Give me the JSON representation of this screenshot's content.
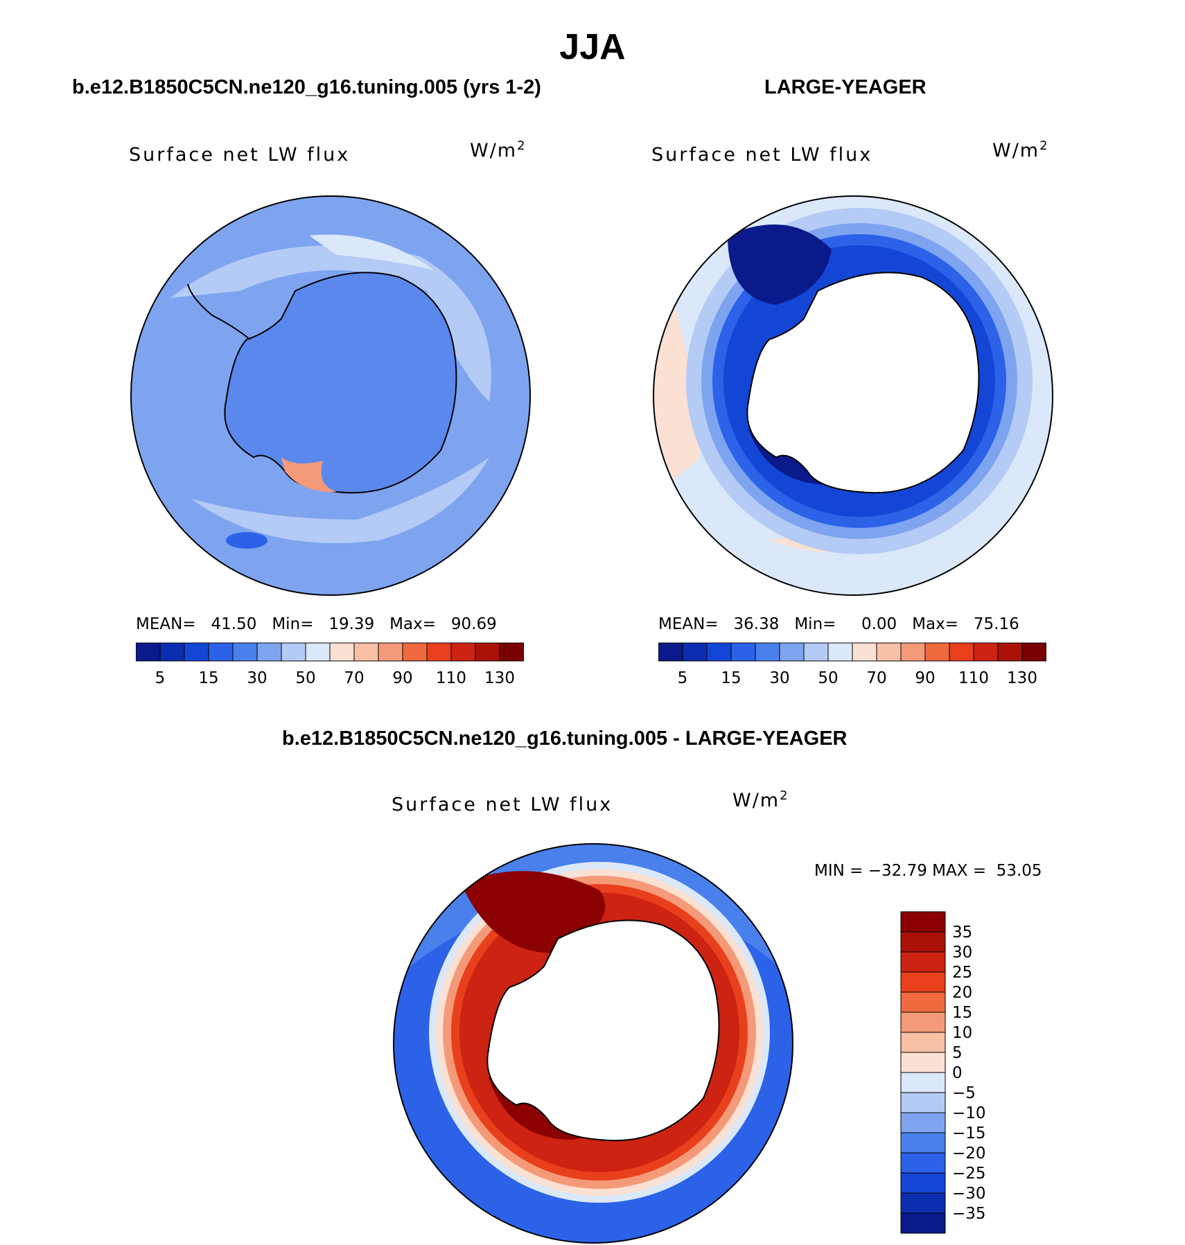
{
  "title": "JJA",
  "colors": {
    "sequential": [
      "#0a1a8a",
      "#0b2db0",
      "#1446d6",
      "#2b62e8",
      "#4a80ec",
      "#7ea4f0",
      "#b4cbf5",
      "#dbe8fa",
      "#fbe1d3",
      "#f8c0a5",
      "#f59a78",
      "#f06a40",
      "#e8401c",
      "#cc2312",
      "#aa1208",
      "#7a0000"
    ],
    "diverging": [
      "#0a1a8a",
      "#0b2db0",
      "#1446d6",
      "#2b62e8",
      "#4a80ec",
      "#7ea4f0",
      "#b4cbf5",
      "#dbe8fa",
      "#fbe1d3",
      "#f8c0a5",
      "#f59a78",
      "#f06a40",
      "#e8401c",
      "#cc2312",
      "#aa1208",
      "#8b0000"
    ]
  },
  "panels": {
    "model": {
      "case": "b.e12.B1850C5CN.ne120_g16.tuning.005 (yrs 1-2)",
      "variable": "Surface net LW flux",
      "units_base": "W/m",
      "units_exp": "2",
      "mean_label": "MEAN=",
      "mean": "41.50",
      "min_label": "Min=",
      "min": "19.39",
      "max_label": "Max=",
      "max": "90.69",
      "colorbar_ticks": [
        "5",
        "15",
        "30",
        "50",
        "70",
        "90",
        "110",
        "130"
      ]
    },
    "obs": {
      "case": "LARGE-YEAGER",
      "variable": "Surface net LW flux",
      "units_base": "W/m",
      "units_exp": "2",
      "mean_label": "MEAN=",
      "mean": "36.38",
      "min_label": "Min=",
      "min": "0.00",
      "max_label": "Max=",
      "max": "75.16",
      "colorbar_ticks": [
        "5",
        "15",
        "30",
        "50",
        "70",
        "90",
        "110",
        "130"
      ]
    },
    "diff": {
      "case": "b.e12.B1850C5CN.ne120_g16.tuning.005 - LARGE-YEAGER",
      "variable": "Surface net LW flux",
      "units_base": "W/m",
      "units_exp": "2",
      "min_label": "MIN =",
      "min": "−32.79",
      "max_label": "MAX =",
      "max": "53.05",
      "colorbar_ticks": [
        "35",
        "30",
        "25",
        "20",
        "15",
        "10",
        "5",
        "0",
        "−5",
        "−10",
        "−15",
        "−20",
        "−25",
        "−30",
        "−35"
      ]
    }
  }
}
